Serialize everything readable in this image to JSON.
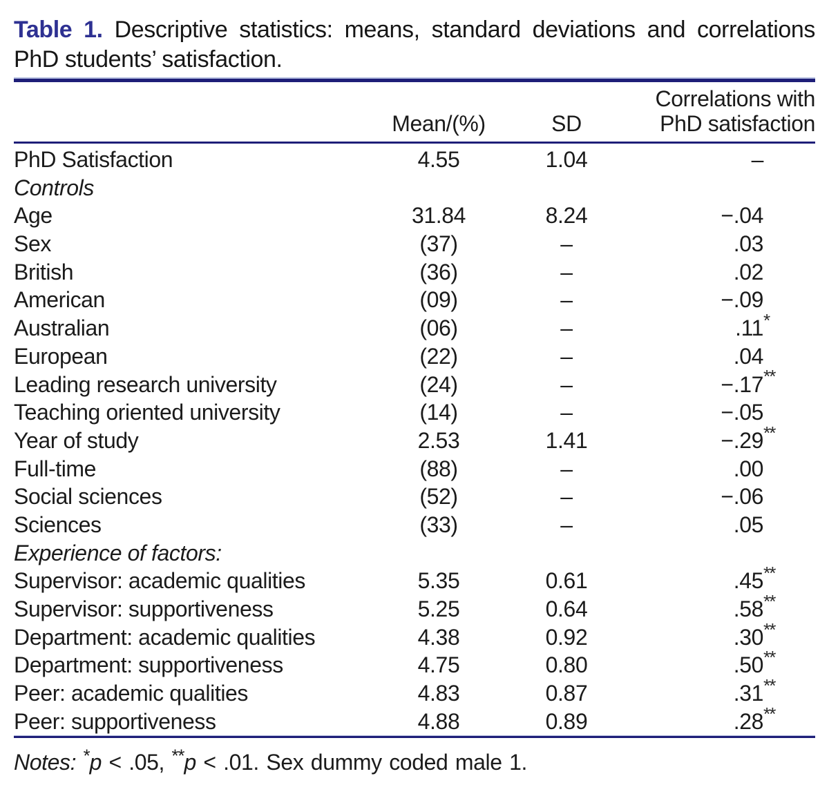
{
  "caption": {
    "label": "Table 1.",
    "line1": "Descriptive statistics: means, standard deviations and correlations with",
    "line2": "PhD students’ satisfaction."
  },
  "table": {
    "columns": {
      "mean": "Mean/(%)",
      "sd": "SD",
      "corr_line1": "Correlations with",
      "corr_line2": "PhD satisfaction"
    },
    "rows": [
      {
        "label": "PhD Satisfaction",
        "mean": "4.55",
        "sd": "1.04",
        "corr": "–",
        "ast": "",
        "section": false
      },
      {
        "label": "Controls",
        "mean": "",
        "sd": "",
        "corr": "",
        "ast": "",
        "section": true
      },
      {
        "label": "Age",
        "mean": "31.84",
        "sd": "8.24",
        "corr": "−.04",
        "ast": "",
        "section": false
      },
      {
        "label": "Sex",
        "mean": "(37)",
        "sd": "–",
        "corr": ".03",
        "ast": "",
        "section": false
      },
      {
        "label": "British",
        "mean": "(36)",
        "sd": "–",
        "corr": ".02",
        "ast": "",
        "section": false
      },
      {
        "label": "American",
        "mean": "(09)",
        "sd": "–",
        "corr": "−.09",
        "ast": "",
        "section": false
      },
      {
        "label": "Australian",
        "mean": "(06)",
        "sd": "–",
        "corr": ".11",
        "ast": "*",
        "section": false
      },
      {
        "label": "European",
        "mean": "(22)",
        "sd": "–",
        "corr": ".04",
        "ast": "",
        "section": false
      },
      {
        "label": "Leading research university",
        "mean": "(24)",
        "sd": "–",
        "corr": "−.17",
        "ast": "**",
        "section": false
      },
      {
        "label": "Teaching oriented university",
        "mean": "(14)",
        "sd": "–",
        "corr": "−.05",
        "ast": "",
        "section": false
      },
      {
        "label": "Year of study",
        "mean": "2.53",
        "sd": "1.41",
        "corr": "−.29",
        "ast": "**",
        "section": false
      },
      {
        "label": "Full-time",
        "mean": "(88)",
        "sd": "–",
        "corr": ".00",
        "ast": "",
        "section": false
      },
      {
        "label": "Social sciences",
        "mean": "(52)",
        "sd": "–",
        "corr": "−.06",
        "ast": "",
        "section": false
      },
      {
        "label": "Sciences",
        "mean": "(33)",
        "sd": "–",
        "corr": ".05",
        "ast": "",
        "section": false
      },
      {
        "label": "Experience of factors:",
        "mean": "",
        "sd": "",
        "corr": "",
        "ast": "",
        "section": true
      },
      {
        "label": "Supervisor: academic qualities",
        "mean": "5.35",
        "sd": "0.61",
        "corr": ".45",
        "ast": "**",
        "section": false
      },
      {
        "label": "Supervisor: supportiveness",
        "mean": "5.25",
        "sd": "0.64",
        "corr": ".58",
        "ast": "**",
        "section": false
      },
      {
        "label": "Department: academic qualities",
        "mean": "4.38",
        "sd": "0.92",
        "corr": ".30",
        "ast": "**",
        "section": false
      },
      {
        "label": "Department: supportiveness",
        "mean": "4.75",
        "sd": "0.80",
        "corr": ".50",
        "ast": "**",
        "section": false
      },
      {
        "label": "Peer: academic qualities",
        "mean": "4.83",
        "sd": "0.87",
        "corr": ".31",
        "ast": "**",
        "section": false
      },
      {
        "label": "Peer: supportiveness",
        "mean": "4.88",
        "sd": "0.89",
        "corr": ".28",
        "ast": "**",
        "section": false
      }
    ]
  },
  "notes": {
    "label": "Notes:",
    "p1_ast": "*",
    "p1_var": "p",
    "p1_rest": " < .05, ",
    "p2_ast": "**",
    "p2_var": "p",
    "p2_rest": " < .01. Sex dummy coded male 1."
  },
  "colors": {
    "rule_navy": "#1e1e78",
    "caption_blue": "#2e3192",
    "text": "#1b1b1b"
  }
}
